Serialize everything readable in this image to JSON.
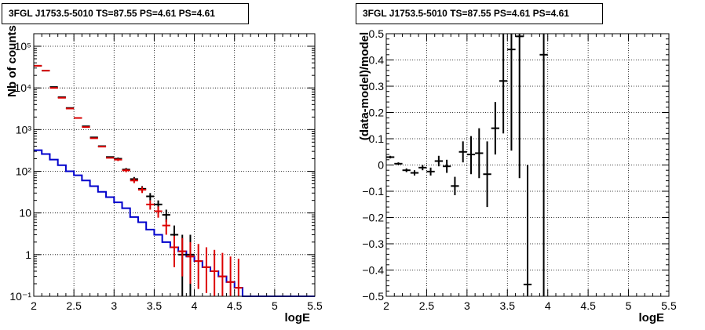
{
  "chart_data": [
    {
      "type": "step-histogram",
      "title": "3FGL J1753.5-5010 TS=87.55 PS=4.61 PS=4.61",
      "xlabel": "logE",
      "ylabel": "Nb of counts",
      "xlim": [
        2,
        5.5
      ],
      "ylim": [
        0.1,
        200000
      ],
      "yscale": "log",
      "grid": true,
      "xticks": [
        2,
        2.5,
        3,
        3.5,
        4,
        4.5,
        5,
        5.5
      ],
      "xtick_labels": [
        "2",
        "2.5",
        "3",
        "3.5",
        "4",
        "4.5",
        "5",
        "5.5"
      ],
      "yticks": [
        0.1,
        1,
        10,
        100,
        1000,
        10000,
        100000
      ],
      "ytick_labels": [
        "10⁻¹",
        "1",
        "10",
        "10²",
        "10³",
        "10⁴",
        "10⁵"
      ],
      "series": [
        {
          "color": "#0000cc",
          "style": "step",
          "x": [
            2.0,
            2.1,
            2.2,
            2.3,
            2.4,
            2.5,
            2.6,
            2.7,
            2.8,
            2.9,
            3.0,
            3.1,
            3.2,
            3.3,
            3.4,
            3.5,
            3.6,
            3.7,
            3.8,
            3.9,
            4.0,
            4.1,
            4.2,
            4.3,
            4.4,
            4.5,
            4.6,
            4.7,
            4.8,
            4.9,
            5.0,
            5.1,
            5.2,
            5.3,
            5.4,
            5.5
          ],
          "y": [
            320,
            260,
            190,
            140,
            100,
            80,
            60,
            44,
            32,
            24,
            18,
            13,
            8,
            6,
            4,
            3,
            2,
            1.5,
            1.2,
            0.9,
            0.7,
            0.5,
            0.4,
            0.3,
            0.22,
            0.16,
            0.1,
            0.1,
            0.1,
            0.1,
            0.1,
            0.1,
            0.1,
            0.1,
            0.1
          ]
        },
        {
          "color": "#000000",
          "style": "errorbar",
          "x": [
            2.05,
            2.15,
            2.25,
            2.35,
            2.45,
            2.55,
            2.65,
            2.75,
            2.85,
            2.95,
            3.05,
            3.15,
            3.25,
            3.35,
            3.45,
            3.55,
            3.65,
            3.75,
            3.85,
            3.95
          ],
          "y": [
            34000,
            26000,
            10500,
            6000,
            3300,
            1900,
            1200,
            650,
            400,
            220,
            200,
            110,
            65,
            38,
            25,
            16,
            9,
            3,
            1,
            1
          ],
          "ylow": [
            34000,
            26000,
            10500,
            6000,
            3300,
            1900,
            1200,
            650,
            400,
            220,
            186,
            100,
            57,
            32,
            20,
            12,
            6.1,
            1.5,
            0.1,
            0.1
          ],
          "yhigh": [
            34000,
            26000,
            10500,
            6000,
            3300,
            1900,
            1200,
            650,
            400,
            220,
            214,
            120,
            73,
            44,
            30,
            20,
            12,
            5,
            3,
            3
          ]
        },
        {
          "color": "#dd0000",
          "style": "errorbar",
          "x": [
            2.05,
            2.15,
            2.25,
            2.35,
            2.45,
            2.55,
            2.65,
            2.75,
            2.85,
            2.95,
            3.05,
            3.15,
            3.25,
            3.35,
            3.45,
            3.55,
            3.65,
            3.75,
            3.85,
            3.95,
            4.05,
            4.15,
            4.25,
            4.35,
            4.45,
            4.55
          ],
          "y": [
            34000,
            26000,
            10000,
            5800,
            3200,
            1900,
            1150,
            620,
            390,
            210,
            190,
            105,
            60,
            36,
            16,
            11,
            5,
            1.5,
            1.2,
            0.9,
            0.7,
            0.5,
            0.4,
            0.3,
            0.22,
            0.16
          ],
          "ylow": [
            34000,
            26000,
            10000,
            5800,
            3200,
            1900,
            1150,
            620,
            390,
            210,
            176,
            95,
            52,
            30,
            12,
            7.7,
            3,
            0.5,
            0.3,
            0.2,
            0.15,
            0.12,
            0.1,
            0.1,
            0.1,
            0.1
          ],
          "yhigh": [
            34000,
            26000,
            10000,
            5800,
            3200,
            1900,
            1150,
            620,
            390,
            210,
            204,
            115,
            68,
            42,
            20,
            14.3,
            7,
            2.8,
            2.5,
            2,
            1.8,
            1.5,
            1.3,
            1.1,
            0.9,
            0.8
          ]
        }
      ]
    },
    {
      "type": "errorbar",
      "title": "3FGL J1753.5-5010 TS=87.55 PS=4.61 PS=4.61",
      "xlabel": "logE",
      "ylabel": "(data-model)/model",
      "xlim": [
        2,
        5.5
      ],
      "ylim": [
        -0.5,
        0.5
      ],
      "grid": true,
      "xticks": [
        2,
        2.5,
        3,
        3.5,
        4,
        4.5,
        5,
        5.5
      ],
      "xtick_labels": [
        "2",
        "2.5",
        "3",
        "3.5",
        "4",
        "4.5",
        "5",
        "5.5"
      ],
      "yticks": [
        -0.5,
        -0.4,
        -0.3,
        -0.2,
        -0.1,
        0,
        0.1,
        0.2,
        0.3,
        0.4,
        0.5
      ],
      "ytick_labels": [
        "−0.5",
        "−0.4",
        "−0.3",
        "−0.2",
        "−0.1",
        "0",
        "0.1",
        "0.2",
        "0.3",
        "0.4",
        "0.5"
      ],
      "series": [
        {
          "color": "#000000",
          "x": [
            2.05,
            2.15,
            2.25,
            2.35,
            2.45,
            2.55,
            2.65,
            2.75,
            2.85,
            2.95,
            3.05,
            3.15,
            3.25,
            3.35,
            3.45,
            3.55,
            3.65,
            3.75,
            3.95
          ],
          "y": [
            0.03,
            0.005,
            -0.02,
            -0.03,
            -0.01,
            -0.025,
            0.015,
            -0.005,
            -0.08,
            0.05,
            0.04,
            0.045,
            -0.035,
            0.14,
            0.32,
            0.44,
            0.49,
            -0.455,
            0.42
          ],
          "ylow": [
            0.025,
            0.0,
            -0.027,
            -0.04,
            -0.02,
            -0.04,
            -0.005,
            -0.03,
            -0.115,
            0.01,
            -0.035,
            -0.05,
            -0.16,
            0.04,
            0.12,
            0.055,
            -0.05,
            -0.5,
            -0.5
          ],
          "yhigh": [
            0.035,
            0.01,
            -0.013,
            -0.02,
            0.0,
            -0.01,
            0.035,
            0.02,
            -0.045,
            0.09,
            0.11,
            0.14,
            0.09,
            0.24,
            0.5,
            0.5,
            0.5,
            0.0,
            0.5
          ]
        }
      ]
    }
  ]
}
